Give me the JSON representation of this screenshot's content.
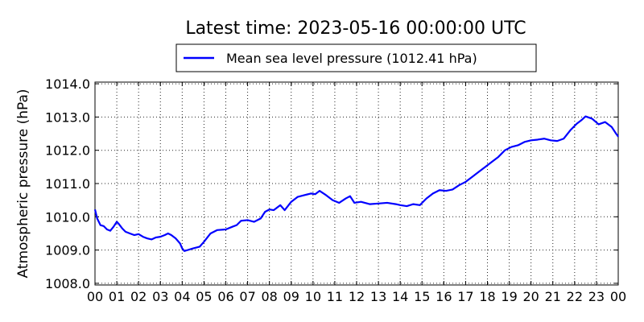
{
  "chart_data": {
    "type": "line",
    "title": "Latest time: 2023-05-16 00:00:00 UTC",
    "ylabel": "Atmospheric pressure (hPa)",
    "xlabel": "",
    "xlim": [
      0,
      24
    ],
    "ylim": [
      1007.95,
      1014.05
    ],
    "grid": true,
    "legend_position": "top-center",
    "x_ticks": [
      "00",
      "01",
      "02",
      "03",
      "04",
      "05",
      "06",
      "07",
      "08",
      "09",
      "10",
      "11",
      "12",
      "13",
      "14",
      "15",
      "16",
      "17",
      "18",
      "19",
      "20",
      "21",
      "22",
      "23",
      "00"
    ],
    "y_ticks": [
      "1008.0",
      "1009.0",
      "1010.0",
      "1011.0",
      "1012.0",
      "1013.0",
      "1014.0"
    ],
    "series": [
      {
        "name": "Mean sea level pressure (1012.41 hPa)",
        "color": "#0000ff",
        "x": [
          0,
          0.1,
          0.25,
          0.4,
          0.55,
          0.7,
          0.85,
          1.0,
          1.1,
          1.25,
          1.4,
          1.6,
          1.8,
          2.0,
          2.2,
          2.4,
          2.6,
          2.8,
          3.0,
          3.2,
          3.35,
          3.5,
          3.7,
          3.9,
          4.0,
          4.1,
          4.25,
          4.5,
          4.8,
          5.0,
          5.3,
          5.6,
          6.0,
          6.3,
          6.5,
          6.7,
          7.0,
          7.3,
          7.6,
          7.8,
          8.0,
          8.2,
          8.5,
          8.7,
          9.0,
          9.3,
          9.6,
          9.9,
          10.1,
          10.3,
          10.6,
          10.9,
          11.2,
          11.5,
          11.7,
          11.9,
          12.2,
          12.6,
          13.0,
          13.4,
          13.8,
          14.0,
          14.3,
          14.6,
          14.9,
          15.2,
          15.5,
          15.8,
          16.1,
          16.4,
          16.7,
          17.0,
          17.3,
          17.6,
          17.9,
          18.2,
          18.5,
          18.8,
          19.1,
          19.4,
          19.7,
          20.0,
          20.3,
          20.6,
          20.9,
          21.2,
          21.5,
          21.8,
          22.1,
          22.3,
          22.5,
          22.8,
          23.1,
          23.4,
          23.7,
          23.9,
          24.0
        ],
        "y": [
          1010.22,
          1009.95,
          1009.75,
          1009.72,
          1009.62,
          1009.58,
          1009.7,
          1009.85,
          1009.78,
          1009.65,
          1009.55,
          1009.5,
          1009.45,
          1009.48,
          1009.4,
          1009.35,
          1009.32,
          1009.38,
          1009.4,
          1009.45,
          1009.5,
          1009.45,
          1009.35,
          1009.2,
          1009.05,
          1008.97,
          1009.0,
          1009.05,
          1009.1,
          1009.25,
          1009.5,
          1009.6,
          1009.62,
          1009.7,
          1009.75,
          1009.88,
          1009.9,
          1009.85,
          1009.95,
          1010.15,
          1010.22,
          1010.2,
          1010.35,
          1010.2,
          1010.45,
          1010.6,
          1010.65,
          1010.7,
          1010.68,
          1010.78,
          1010.65,
          1010.5,
          1010.42,
          1010.55,
          1010.62,
          1010.42,
          1010.45,
          1010.38,
          1010.4,
          1010.42,
          1010.38,
          1010.35,
          1010.32,
          1010.38,
          1010.35,
          1010.55,
          1010.7,
          1010.8,
          1010.78,
          1010.82,
          1010.95,
          1011.05,
          1011.2,
          1011.35,
          1011.5,
          1011.65,
          1011.8,
          1012.0,
          1012.1,
          1012.15,
          1012.25,
          1012.3,
          1012.32,
          1012.35,
          1012.3,
          1012.28,
          1012.35,
          1012.6,
          1012.8,
          1012.9,
          1013.02,
          1012.95,
          1012.78,
          1012.85,
          1012.7,
          1012.5,
          1012.41
        ]
      }
    ]
  }
}
